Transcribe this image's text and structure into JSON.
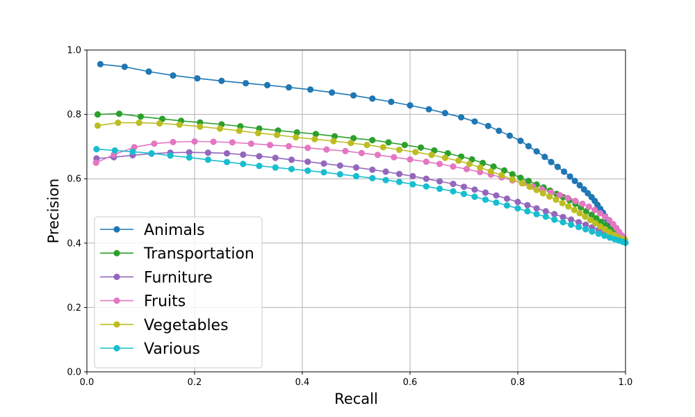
{
  "chart_data": {
    "type": "line",
    "title": "",
    "xlabel": "Recall",
    "ylabel": "Precision",
    "xlim": [
      0,
      1
    ],
    "ylim": [
      0,
      1
    ],
    "grid": true,
    "legend_position": "lower-left",
    "xticks": [
      "0.0",
      "0.2",
      "0.4",
      "0.6",
      "0.8",
      "1.0"
    ],
    "yticks": [
      "0.0",
      "0.2",
      "0.4",
      "0.6",
      "0.8",
      "1.0"
    ],
    "series": [
      {
        "name": "Animals",
        "color": "#1f77b4",
        "points": [
          [
            0.025,
            0.956
          ],
          [
            0.07,
            0.948
          ],
          [
            0.115,
            0.933
          ],
          [
            0.16,
            0.921
          ],
          [
            0.205,
            0.912
          ],
          [
            0.25,
            0.904
          ],
          [
            0.295,
            0.897
          ],
          [
            0.335,
            0.891
          ],
          [
            0.375,
            0.884
          ],
          [
            0.415,
            0.877
          ],
          [
            0.455,
            0.868
          ],
          [
            0.495,
            0.859
          ],
          [
            0.53,
            0.849
          ],
          [
            0.565,
            0.839
          ],
          [
            0.6,
            0.828
          ],
          [
            0.635,
            0.816
          ],
          [
            0.665,
            0.804
          ],
          [
            0.695,
            0.791
          ],
          [
            0.72,
            0.778
          ],
          [
            0.745,
            0.764
          ],
          [
            0.765,
            0.749
          ],
          [
            0.785,
            0.734
          ],
          [
            0.805,
            0.718
          ],
          [
            0.82,
            0.701
          ],
          [
            0.835,
            0.685
          ],
          [
            0.85,
            0.668
          ],
          [
            0.862,
            0.652
          ],
          [
            0.874,
            0.637
          ],
          [
            0.886,
            0.622
          ],
          [
            0.897,
            0.607
          ],
          [
            0.906,
            0.593
          ],
          [
            0.915,
            0.58
          ],
          [
            0.923,
            0.567
          ],
          [
            0.93,
            0.555
          ],
          [
            0.937,
            0.543
          ],
          [
            0.943,
            0.531
          ],
          [
            0.948,
            0.519
          ],
          [
            0.953,
            0.507
          ],
          [
            0.958,
            0.495
          ],
          [
            0.962,
            0.484
          ],
          [
            0.966,
            0.473
          ],
          [
            0.97,
            0.462
          ],
          [
            0.974,
            0.452
          ],
          [
            0.978,
            0.442
          ],
          [
            0.982,
            0.433
          ],
          [
            0.986,
            0.425
          ],
          [
            0.99,
            0.418
          ],
          [
            0.994,
            0.412
          ],
          [
            0.998,
            0.408
          ]
        ]
      },
      {
        "name": "Transportation",
        "color": "#2ca02c",
        "points": [
          [
            0.02,
            0.8
          ],
          [
            0.06,
            0.802
          ],
          [
            0.1,
            0.793
          ],
          [
            0.14,
            0.786
          ],
          [
            0.175,
            0.78
          ],
          [
            0.21,
            0.775
          ],
          [
            0.25,
            0.769
          ],
          [
            0.285,
            0.763
          ],
          [
            0.32,
            0.756
          ],
          [
            0.355,
            0.75
          ],
          [
            0.39,
            0.744
          ],
          [
            0.425,
            0.739
          ],
          [
            0.46,
            0.732
          ],
          [
            0.495,
            0.726
          ],
          [
            0.53,
            0.72
          ],
          [
            0.56,
            0.713
          ],
          [
            0.59,
            0.705
          ],
          [
            0.62,
            0.697
          ],
          [
            0.645,
            0.688
          ],
          [
            0.67,
            0.679
          ],
          [
            0.695,
            0.669
          ],
          [
            0.715,
            0.66
          ],
          [
            0.735,
            0.649
          ],
          [
            0.755,
            0.638
          ],
          [
            0.775,
            0.626
          ],
          [
            0.79,
            0.614
          ],
          [
            0.805,
            0.603
          ],
          [
            0.82,
            0.593
          ],
          [
            0.835,
            0.582
          ],
          [
            0.848,
            0.573
          ],
          [
            0.86,
            0.563
          ],
          [
            0.872,
            0.553
          ],
          [
            0.884,
            0.543
          ],
          [
            0.896,
            0.533
          ],
          [
            0.907,
            0.522
          ],
          [
            0.917,
            0.511
          ],
          [
            0.927,
            0.499
          ],
          [
            0.937,
            0.488
          ],
          [
            0.946,
            0.477
          ],
          [
            0.955,
            0.466
          ],
          [
            0.963,
            0.455
          ],
          [
            0.971,
            0.444
          ],
          [
            0.979,
            0.434
          ],
          [
            0.986,
            0.425
          ],
          [
            0.992,
            0.417
          ],
          [
            0.998,
            0.411
          ]
        ]
      },
      {
        "name": "Furniture",
        "color": "#9467bd",
        "points": [
          [
            0.018,
            0.663
          ],
          [
            0.05,
            0.667
          ],
          [
            0.085,
            0.673
          ],
          [
            0.12,
            0.678
          ],
          [
            0.155,
            0.681
          ],
          [
            0.19,
            0.682
          ],
          [
            0.225,
            0.681
          ],
          [
            0.26,
            0.679
          ],
          [
            0.29,
            0.675
          ],
          [
            0.32,
            0.67
          ],
          [
            0.35,
            0.665
          ],
          [
            0.38,
            0.659
          ],
          [
            0.41,
            0.653
          ],
          [
            0.44,
            0.647
          ],
          [
            0.47,
            0.641
          ],
          [
            0.5,
            0.635
          ],
          [
            0.53,
            0.628
          ],
          [
            0.555,
            0.622
          ],
          [
            0.58,
            0.615
          ],
          [
            0.605,
            0.608
          ],
          [
            0.63,
            0.6
          ],
          [
            0.655,
            0.592
          ],
          [
            0.68,
            0.584
          ],
          [
            0.7,
            0.575
          ],
          [
            0.72,
            0.566
          ],
          [
            0.74,
            0.557
          ],
          [
            0.76,
            0.548
          ],
          [
            0.78,
            0.538
          ],
          [
            0.8,
            0.528
          ],
          [
            0.818,
            0.518
          ],
          [
            0.835,
            0.508
          ],
          [
            0.852,
            0.499
          ],
          [
            0.868,
            0.49
          ],
          [
            0.884,
            0.481
          ],
          [
            0.899,
            0.473
          ],
          [
            0.913,
            0.465
          ],
          [
            0.926,
            0.457
          ],
          [
            0.938,
            0.449
          ],
          [
            0.95,
            0.441
          ],
          [
            0.961,
            0.433
          ],
          [
            0.971,
            0.425
          ],
          [
            0.98,
            0.418
          ],
          [
            0.988,
            0.412
          ],
          [
            0.995,
            0.407
          ]
        ]
      },
      {
        "name": "Fruits",
        "color": "#e377c2",
        "points": [
          [
            0.017,
            0.65
          ],
          [
            0.05,
            0.675
          ],
          [
            0.088,
            0.698
          ],
          [
            0.125,
            0.709
          ],
          [
            0.16,
            0.714
          ],
          [
            0.2,
            0.716
          ],
          [
            0.235,
            0.715
          ],
          [
            0.27,
            0.713
          ],
          [
            0.305,
            0.709
          ],
          [
            0.34,
            0.705
          ],
          [
            0.375,
            0.701
          ],
          [
            0.41,
            0.696
          ],
          [
            0.445,
            0.691
          ],
          [
            0.48,
            0.686
          ],
          [
            0.51,
            0.68
          ],
          [
            0.54,
            0.674
          ],
          [
            0.57,
            0.667
          ],
          [
            0.6,
            0.66
          ],
          [
            0.63,
            0.653
          ],
          [
            0.655,
            0.646
          ],
          [
            0.68,
            0.638
          ],
          [
            0.705,
            0.63
          ],
          [
            0.73,
            0.621
          ],
          [
            0.75,
            0.613
          ],
          [
            0.77,
            0.604
          ],
          [
            0.79,
            0.595
          ],
          [
            0.81,
            0.586
          ],
          [
            0.828,
            0.576
          ],
          [
            0.845,
            0.567
          ],
          [
            0.862,
            0.558
          ],
          [
            0.878,
            0.549
          ],
          [
            0.893,
            0.54
          ],
          [
            0.907,
            0.531
          ],
          [
            0.92,
            0.522
          ],
          [
            0.932,
            0.513
          ],
          [
            0.943,
            0.503
          ],
          [
            0.953,
            0.493
          ],
          [
            0.962,
            0.482
          ],
          [
            0.97,
            0.471
          ],
          [
            0.977,
            0.459
          ],
          [
            0.983,
            0.447
          ],
          [
            0.988,
            0.435
          ],
          [
            0.993,
            0.424
          ],
          [
            0.997,
            0.414
          ]
        ]
      },
      {
        "name": "Vegetables",
        "color": "#bcbd22",
        "points": [
          [
            0.02,
            0.765
          ],
          [
            0.058,
            0.774
          ],
          [
            0.097,
            0.774
          ],
          [
            0.135,
            0.772
          ],
          [
            0.172,
            0.768
          ],
          [
            0.21,
            0.762
          ],
          [
            0.247,
            0.756
          ],
          [
            0.283,
            0.749
          ],
          [
            0.318,
            0.742
          ],
          [
            0.353,
            0.736
          ],
          [
            0.388,
            0.729
          ],
          [
            0.423,
            0.723
          ],
          [
            0.458,
            0.717
          ],
          [
            0.49,
            0.711
          ],
          [
            0.52,
            0.705
          ],
          [
            0.55,
            0.698
          ],
          [
            0.58,
            0.69
          ],
          [
            0.61,
            0.683
          ],
          [
            0.64,
            0.674
          ],
          [
            0.665,
            0.665
          ],
          [
            0.69,
            0.656
          ],
          [
            0.71,
            0.646
          ],
          [
            0.73,
            0.635
          ],
          [
            0.75,
            0.623
          ],
          [
            0.77,
            0.611
          ],
          [
            0.79,
            0.598
          ],
          [
            0.808,
            0.586
          ],
          [
            0.822,
            0.575
          ],
          [
            0.835,
            0.565
          ],
          [
            0.847,
            0.555
          ],
          [
            0.859,
            0.545
          ],
          [
            0.871,
            0.535
          ],
          [
            0.883,
            0.524
          ],
          [
            0.894,
            0.514
          ],
          [
            0.905,
            0.503
          ],
          [
            0.915,
            0.493
          ],
          [
            0.925,
            0.482
          ],
          [
            0.935,
            0.472
          ],
          [
            0.944,
            0.462
          ],
          [
            0.953,
            0.452
          ],
          [
            0.962,
            0.443
          ],
          [
            0.97,
            0.434
          ],
          [
            0.978,
            0.426
          ],
          [
            0.986,
            0.419
          ],
          [
            0.993,
            0.413
          ],
          [
            0.999,
            0.41
          ]
        ]
      },
      {
        "name": "Various",
        "color": "#17becf",
        "points": [
          [
            0.018,
            0.692
          ],
          [
            0.052,
            0.688
          ],
          [
            0.085,
            0.684
          ],
          [
            0.12,
            0.679
          ],
          [
            0.155,
            0.672
          ],
          [
            0.19,
            0.666
          ],
          [
            0.225,
            0.659
          ],
          [
            0.26,
            0.652
          ],
          [
            0.29,
            0.646
          ],
          [
            0.32,
            0.64
          ],
          [
            0.35,
            0.635
          ],
          [
            0.38,
            0.63
          ],
          [
            0.41,
            0.625
          ],
          [
            0.44,
            0.62
          ],
          [
            0.47,
            0.614
          ],
          [
            0.5,
            0.608
          ],
          [
            0.53,
            0.602
          ],
          [
            0.555,
            0.596
          ],
          [
            0.58,
            0.59
          ],
          [
            0.605,
            0.583
          ],
          [
            0.63,
            0.576
          ],
          [
            0.655,
            0.569
          ],
          [
            0.68,
            0.561
          ],
          [
            0.7,
            0.553
          ],
          [
            0.72,
            0.544
          ],
          [
            0.74,
            0.535
          ],
          [
            0.76,
            0.526
          ],
          [
            0.78,
            0.517
          ],
          [
            0.8,
            0.508
          ],
          [
            0.818,
            0.499
          ],
          [
            0.835,
            0.49
          ],
          [
            0.852,
            0.482
          ],
          [
            0.868,
            0.473
          ],
          [
            0.884,
            0.465
          ],
          [
            0.899,
            0.457
          ],
          [
            0.913,
            0.45
          ],
          [
            0.926,
            0.443
          ],
          [
            0.938,
            0.436
          ],
          [
            0.95,
            0.429
          ],
          [
            0.961,
            0.423
          ],
          [
            0.971,
            0.417
          ],
          [
            0.98,
            0.412
          ],
          [
            0.988,
            0.408
          ],
          [
            0.995,
            0.404
          ],
          [
            1.0,
            0.401
          ]
        ]
      }
    ]
  }
}
